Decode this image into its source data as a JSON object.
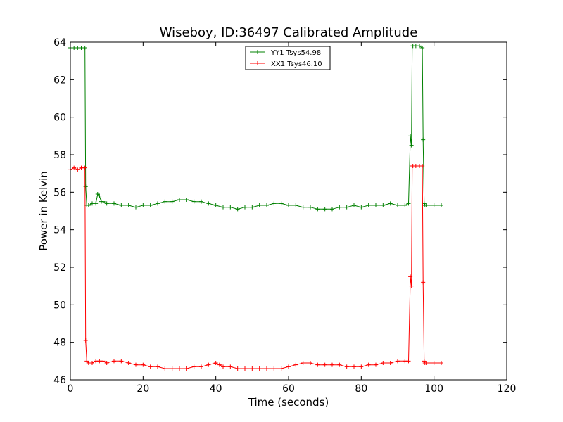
{
  "chart_data": {
    "type": "line",
    "title": "Wiseboy, ID:36497 Calibrated Amplitude",
    "xlabel": "Time (seconds)",
    "ylabel": "Power in Kelvin",
    "xlim": [
      0,
      120
    ],
    "ylim": [
      46,
      64
    ],
    "xticks": [
      0,
      20,
      40,
      60,
      80,
      100,
      120
    ],
    "yticks": [
      46,
      48,
      50,
      52,
      54,
      56,
      58,
      60,
      62,
      64
    ],
    "grid": false,
    "legend_position": "top-center",
    "series": [
      {
        "name": "YY1 Tsys54.98",
        "color": "#008000",
        "marker": "+",
        "x": [
          0,
          1,
          2,
          3,
          4,
          4.2,
          4.5,
          5,
          6,
          7,
          7.5,
          8,
          8.5,
          9,
          10,
          12,
          14,
          16,
          18,
          20,
          22,
          24,
          26,
          28,
          30,
          32,
          34,
          36,
          38,
          40,
          42,
          44,
          46,
          48,
          50,
          52,
          54,
          56,
          58,
          60,
          62,
          64,
          66,
          68,
          70,
          72,
          74,
          76,
          78,
          80,
          82,
          84,
          86,
          88,
          90,
          92,
          93,
          93.5,
          93.8,
          94,
          94.2,
          95,
          96,
          96.8,
          97,
          97.3,
          97.5,
          98,
          100,
          102
        ],
        "y": [
          63.7,
          63.7,
          63.7,
          63.7,
          63.7,
          56.3,
          55.3,
          55.3,
          55.4,
          55.4,
          55.9,
          55.8,
          55.5,
          55.5,
          55.4,
          55.4,
          55.3,
          55.3,
          55.2,
          55.3,
          55.3,
          55.4,
          55.5,
          55.5,
          55.6,
          55.6,
          55.5,
          55.5,
          55.4,
          55.3,
          55.2,
          55.2,
          55.1,
          55.2,
          55.2,
          55.3,
          55.3,
          55.4,
          55.4,
          55.3,
          55.3,
          55.2,
          55.2,
          55.1,
          55.1,
          55.1,
          55.2,
          55.2,
          55.3,
          55.2,
          55.3,
          55.3,
          55.3,
          55.4,
          55.3,
          55.3,
          55.4,
          59.0,
          58.5,
          63.8,
          63.8,
          63.8,
          63.8,
          63.7,
          58.8,
          55.4,
          55.3,
          55.3,
          55.3,
          55.3
        ]
      },
      {
        "name": "XX1 Tsys46.10",
        "color": "#ff0000",
        "marker": "+",
        "x": [
          0,
          1,
          2,
          3,
          4,
          4.2,
          4.5,
          5,
          6,
          7,
          8,
          9,
          10,
          12,
          14,
          16,
          18,
          20,
          22,
          24,
          26,
          28,
          30,
          32,
          34,
          36,
          38,
          40,
          41,
          42,
          44,
          46,
          48,
          50,
          52,
          54,
          56,
          58,
          60,
          62,
          64,
          66,
          68,
          70,
          72,
          74,
          76,
          78,
          80,
          82,
          84,
          86,
          88,
          90,
          92,
          93,
          93.5,
          93.8,
          94,
          94.2,
          95,
          96,
          96.8,
          97,
          97.3,
          97.5,
          98,
          100,
          102
        ],
        "y": [
          57.2,
          57.3,
          57.2,
          57.3,
          57.3,
          48.1,
          47.0,
          46.9,
          46.9,
          47.0,
          47.0,
          47.0,
          46.9,
          47.0,
          47.0,
          46.9,
          46.8,
          46.8,
          46.7,
          46.7,
          46.6,
          46.6,
          46.6,
          46.6,
          46.7,
          46.7,
          46.8,
          46.9,
          46.8,
          46.7,
          46.7,
          46.6,
          46.6,
          46.6,
          46.6,
          46.6,
          46.6,
          46.6,
          46.7,
          46.8,
          46.9,
          46.9,
          46.8,
          46.8,
          46.8,
          46.8,
          46.7,
          46.7,
          46.7,
          46.8,
          46.8,
          46.9,
          46.9,
          47.0,
          47.0,
          47.0,
          51.5,
          51.0,
          57.4,
          57.4,
          57.4,
          57.4,
          57.4,
          51.2,
          47.0,
          46.9,
          46.9,
          46.9,
          46.9
        ]
      }
    ]
  }
}
